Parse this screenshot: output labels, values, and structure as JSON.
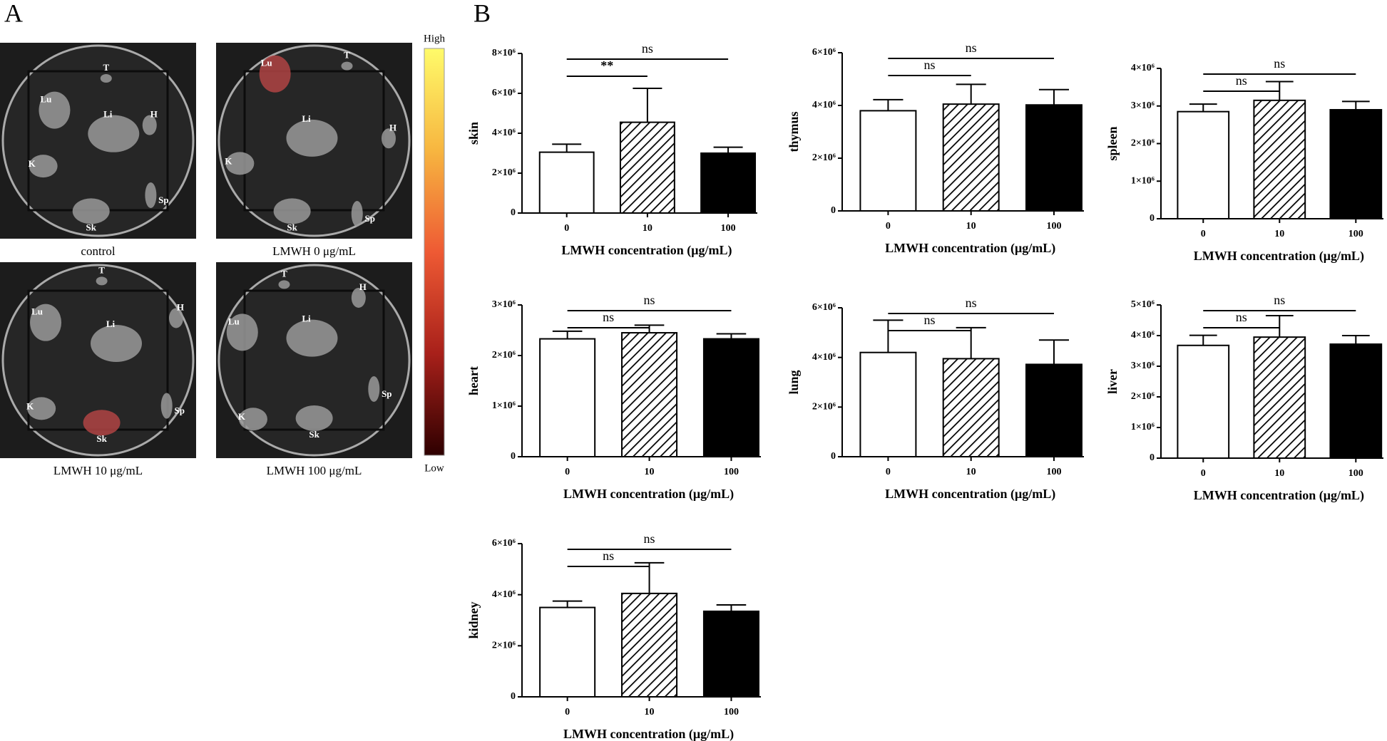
{
  "panel_a": {
    "label": "A",
    "images": [
      {
        "caption": "control",
        "organs": [
          "T",
          "Lu",
          "Li",
          "H",
          "K",
          "Sk",
          "Sp"
        ]
      },
      {
        "caption": "LMWH 0 μg/mL",
        "organs": [
          "T",
          "Lu",
          "Li",
          "H",
          "K",
          "Sk",
          "Sp"
        ]
      },
      {
        "caption": "LMWH 10 μg/mL",
        "organs": [
          "T",
          "Lu",
          "Li",
          "H",
          "K",
          "Sk",
          "Sp"
        ]
      },
      {
        "caption": "LMWH 100 μg/mL",
        "organs": [
          "T",
          "Lu",
          "Li",
          "H",
          "K",
          "Sk",
          "Sp"
        ]
      }
    ],
    "colorbar": {
      "high": "High",
      "low": "Low"
    }
  },
  "panel_b": {
    "label": "B"
  },
  "chart_data": [
    {
      "type": "bar",
      "ylabel": "skin",
      "xlabel": "LMWH concentration (μg/mL)",
      "categories": [
        "0",
        "10",
        "100"
      ],
      "values": [
        3050000,
        4550000,
        3000000
      ],
      "errors": [
        400000,
        1700000,
        300000
      ],
      "fills": [
        "#ffffff",
        "hatched",
        "#000000"
      ],
      "ylim": [
        0,
        8000000
      ],
      "yticks": [
        0,
        {
          "value": 2000000,
          "label": "2×10⁶"
        },
        {
          "value": 4000000,
          "label": "4×10⁶"
        },
        {
          "value": 6000000,
          "label": "6×10⁶"
        },
        {
          "value": 8000000,
          "label": "8×10⁶"
        }
      ],
      "comparisons": [
        {
          "groups": [
            "0",
            "10"
          ],
          "label": "**"
        },
        {
          "groups": [
            "0",
            "100"
          ],
          "label": "ns"
        }
      ]
    },
    {
      "type": "bar",
      "ylabel": "thymus",
      "xlabel": "LMWH concentration (μg/mL)",
      "categories": [
        "0",
        "10",
        "100"
      ],
      "values": [
        3800000,
        4050000,
        4020000
      ],
      "errors": [
        420000,
        750000,
        580000
      ],
      "fills": [
        "#ffffff",
        "hatched",
        "#000000"
      ],
      "ylim": [
        0,
        6000000
      ],
      "yticks": [
        0,
        {
          "value": 2000000,
          "label": "2×10⁶"
        },
        {
          "value": 4000000,
          "label": "4×10⁶"
        },
        {
          "value": 6000000,
          "label": "6×10⁶"
        }
      ],
      "comparisons": [
        {
          "groups": [
            "0",
            "10"
          ],
          "label": "ns"
        },
        {
          "groups": [
            "0",
            "100"
          ],
          "label": "ns"
        }
      ]
    },
    {
      "type": "bar",
      "ylabel": "spleen",
      "xlabel": "LMWH concentration (μg/mL)",
      "categories": [
        "0",
        "10",
        "100"
      ],
      "values": [
        2850000,
        3150000,
        2900000
      ],
      "errors": [
        200000,
        500000,
        220000
      ],
      "fills": [
        "#ffffff",
        "hatched",
        "#000000"
      ],
      "ylim": [
        0,
        4000000
      ],
      "yticks": [
        0,
        {
          "value": 1000000,
          "label": "1×10⁶"
        },
        {
          "value": 2000000,
          "label": "2×10⁶"
        },
        {
          "value": 3000000,
          "label": "3×10⁶"
        },
        {
          "value": 4000000,
          "label": "4×10⁶"
        }
      ],
      "comparisons": [
        {
          "groups": [
            "0",
            "10"
          ],
          "label": "ns"
        },
        {
          "groups": [
            "0",
            "100"
          ],
          "label": "ns"
        }
      ]
    },
    {
      "type": "bar",
      "ylabel": "heart",
      "xlabel": "LMWH concentration (μg/mL)",
      "categories": [
        "0",
        "10",
        "100"
      ],
      "values": [
        2330000,
        2450000,
        2330000
      ],
      "errors": [
        150000,
        150000,
        100000
      ],
      "fills": [
        "#ffffff",
        "hatched",
        "#000000"
      ],
      "ylim": [
        0,
        3000000
      ],
      "yticks": [
        0,
        {
          "value": 1000000,
          "label": "1×10⁶"
        },
        {
          "value": 2000000,
          "label": "2×10⁶"
        },
        {
          "value": 3000000,
          "label": "3×10⁶"
        }
      ],
      "comparisons": [
        {
          "groups": [
            "0",
            "10"
          ],
          "label": "ns"
        },
        {
          "groups": [
            "0",
            "100"
          ],
          "label": "ns"
        }
      ]
    },
    {
      "type": "bar",
      "ylabel": "lung",
      "xlabel": "LMWH concentration (μg/mL)",
      "categories": [
        "0",
        "10",
        "100"
      ],
      "values": [
        4200000,
        3950000,
        3720000
      ],
      "errors": [
        1300000,
        1250000,
        980000
      ],
      "fills": [
        "#ffffff",
        "hatched",
        "#000000"
      ],
      "ylim": [
        0,
        6000000
      ],
      "yticks": [
        0,
        {
          "value": 2000000,
          "label": "2×10⁶"
        },
        {
          "value": 4000000,
          "label": "4×10⁶"
        },
        {
          "value": 6000000,
          "label": "6×10⁶"
        }
      ],
      "comparisons": [
        {
          "groups": [
            "0",
            "10"
          ],
          "label": "ns"
        },
        {
          "groups": [
            "0",
            "100"
          ],
          "label": "ns"
        }
      ]
    },
    {
      "type": "bar",
      "ylabel": "liver",
      "xlabel": "LMWH concentration (μg/mL)",
      "categories": [
        "0",
        "10",
        "100"
      ],
      "values": [
        3680000,
        3950000,
        3720000
      ],
      "errors": [
        330000,
        700000,
        280000
      ],
      "fills": [
        "#ffffff",
        "hatched",
        "#000000"
      ],
      "ylim": [
        0,
        5000000
      ],
      "yticks": [
        0,
        {
          "value": 1000000,
          "label": "1×10⁶"
        },
        {
          "value": 2000000,
          "label": "2×10⁶"
        },
        {
          "value": 3000000,
          "label": "3×10⁶"
        },
        {
          "value": 4000000,
          "label": "4×10⁶"
        },
        {
          "value": 5000000,
          "label": "5×10⁶"
        }
      ],
      "comparisons": [
        {
          "groups": [
            "0",
            "10"
          ],
          "label": "ns"
        },
        {
          "groups": [
            "0",
            "100"
          ],
          "label": "ns"
        }
      ]
    },
    {
      "type": "bar",
      "ylabel": "kidney",
      "xlabel": "LMWH concentration (μg/mL)",
      "categories": [
        "0",
        "10",
        "100"
      ],
      "values": [
        3500000,
        4050000,
        3350000
      ],
      "errors": [
        250000,
        1200000,
        250000
      ],
      "fills": [
        "#ffffff",
        "hatched",
        "#000000"
      ],
      "ylim": [
        0,
        6000000
      ],
      "yticks": [
        0,
        {
          "value": 2000000,
          "label": "2×10⁶"
        },
        {
          "value": 4000000,
          "label": "4×10⁶"
        },
        {
          "value": 6000000,
          "label": "6×10⁶"
        }
      ],
      "comparisons": [
        {
          "groups": [
            "0",
            "10"
          ],
          "label": "ns"
        },
        {
          "groups": [
            "0",
            "100"
          ],
          "label": "ns"
        }
      ]
    }
  ]
}
